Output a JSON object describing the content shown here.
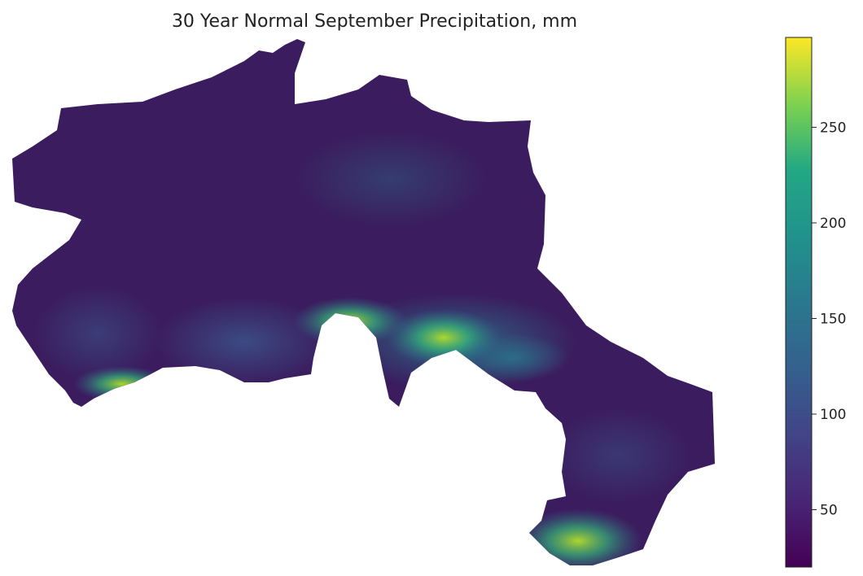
{
  "chart_data": {
    "type": "heatmap",
    "title": "30 Year Normal September Precipitation, mm",
    "colormap": "viridis",
    "colorbar": {
      "range": [
        20,
        297
      ],
      "ticks": [
        50,
        100,
        150,
        200,
        250
      ],
      "tick_labels": [
        "50",
        "100",
        "150",
        "200",
        "250"
      ],
      "position": "right"
    },
    "axes_visible": false,
    "grid": false
  }
}
